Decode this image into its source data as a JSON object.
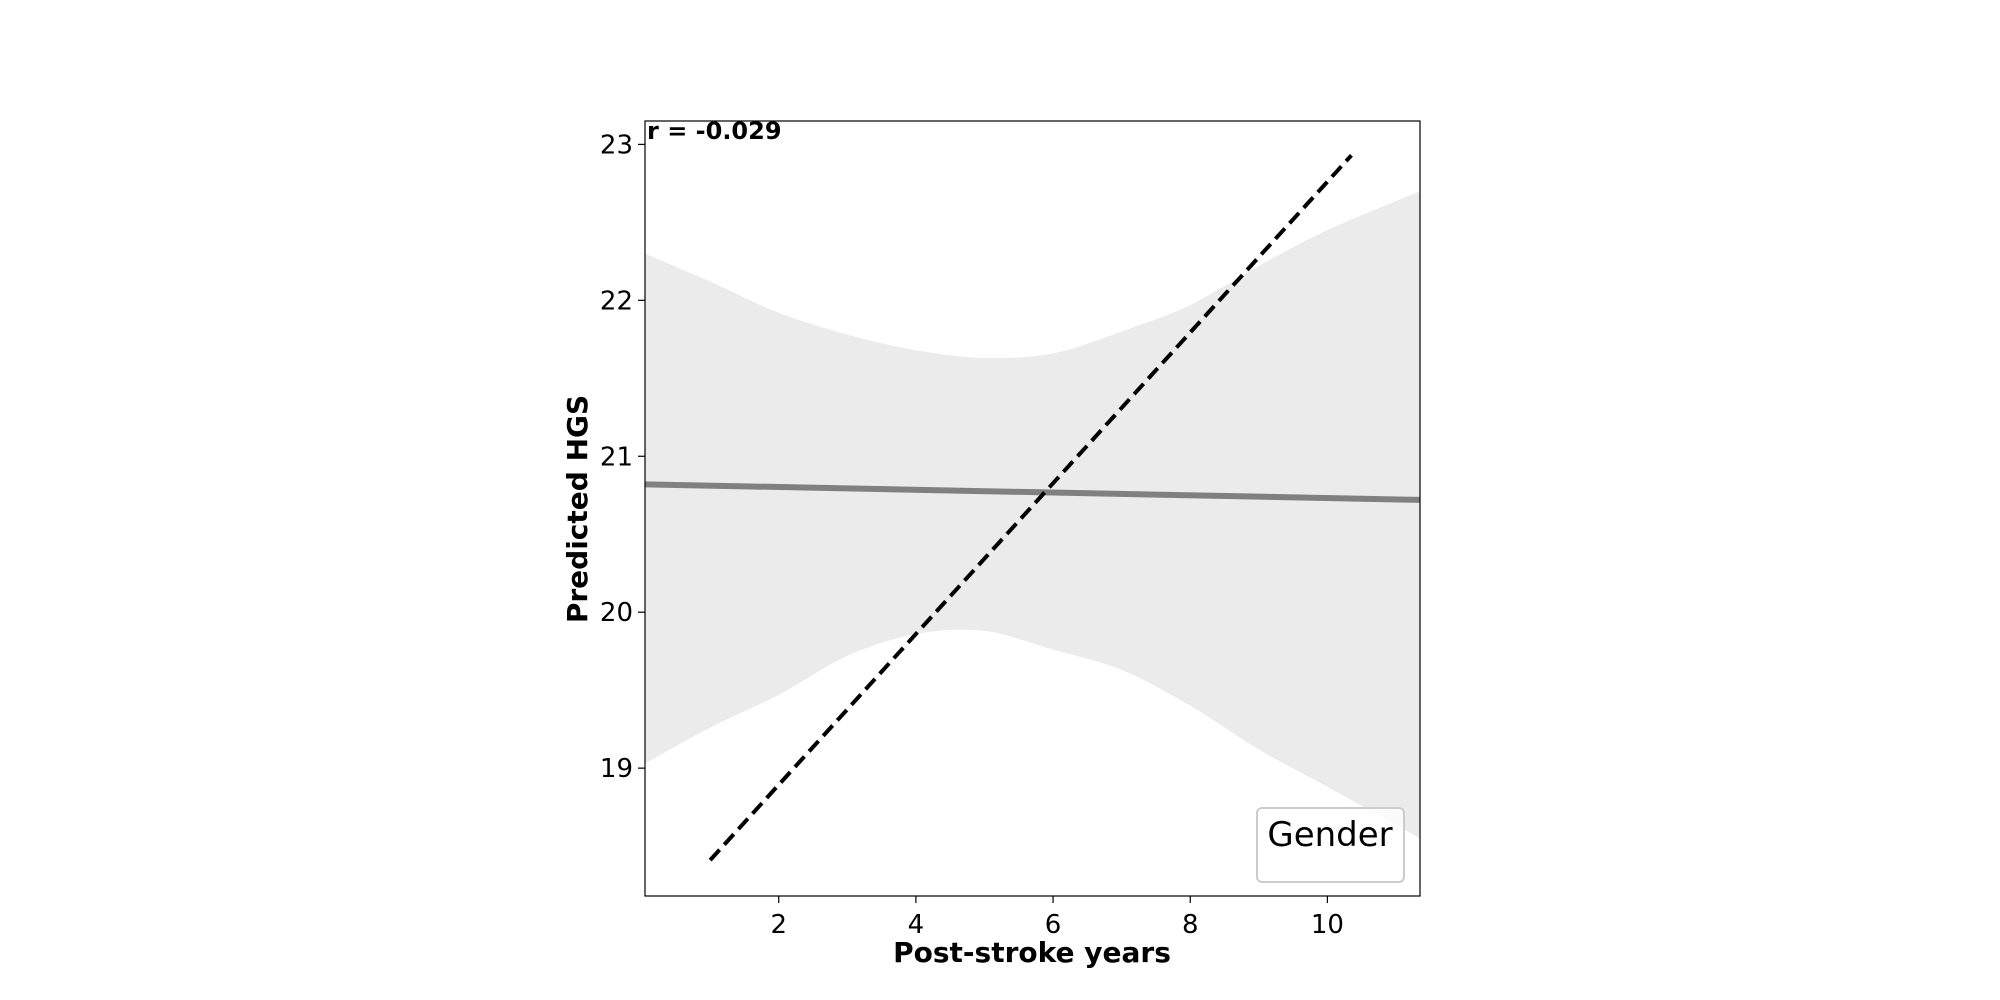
{
  "chart_data": {
    "type": "line",
    "xlabel": "Post-stroke years",
    "ylabel": "Predicted HGS",
    "xlim": [
      0.05,
      11.35
    ],
    "ylim": [
      18.18,
      23.15
    ],
    "xticks": [
      2,
      4,
      6,
      8,
      10
    ],
    "yticks": [
      19,
      20,
      21,
      22,
      23
    ],
    "annotation": "r = -0.029",
    "legend": {
      "title": "Gender",
      "location": "lower-right",
      "entries": []
    },
    "regression_line": {
      "x": [
        0.05,
        11.35
      ],
      "y": [
        20.82,
        20.72
      ],
      "color": "#808080"
    },
    "confidence_band": {
      "color": "#ebebeb",
      "x": [
        0.05,
        1.0,
        2.0,
        3.0,
        4.0,
        5.0,
        6.0,
        7.0,
        8.0,
        9.0,
        10.0,
        11.35
      ],
      "upper": [
        22.3,
        22.12,
        21.92,
        21.78,
        21.68,
        21.63,
        21.66,
        21.8,
        21.97,
        22.22,
        22.45,
        22.7
      ],
      "lower": [
        19.03,
        19.26,
        19.47,
        19.72,
        19.86,
        19.88,
        19.76,
        19.63,
        19.4,
        19.12,
        18.88,
        18.55
      ]
    },
    "reference_line": {
      "style": "dashed",
      "color": "#000000",
      "x": [
        1.0,
        10.35
      ],
      "y": [
        18.41,
        22.93
      ]
    }
  }
}
